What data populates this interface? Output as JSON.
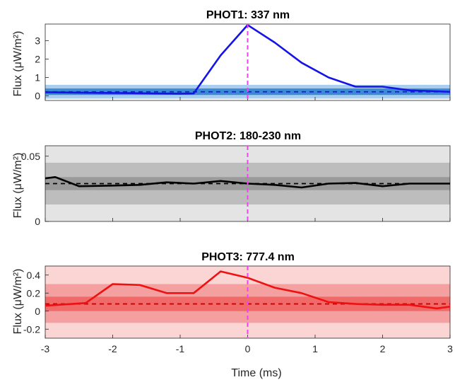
{
  "chart_data": [
    {
      "type": "line",
      "title": "PHOT1: 337 nm",
      "ylabel": "Flux (μW/m²)",
      "xlabel": "",
      "xlim": [
        -3,
        3
      ],
      "ylim": [
        -0.25,
        3.9
      ],
      "yticks": [
        0,
        1,
        2,
        3
      ],
      "xticks": [
        -3,
        -2,
        -1,
        0,
        1,
        2,
        3
      ],
      "show_xticklabels": false,
      "colors": {
        "line": "#1414e6",
        "mean": "#1a1acc",
        "band_inner": "#3a8ad6",
        "band_outer": "#a8cdee",
        "event": "#ee44ee"
      },
      "mean": 0.22,
      "band_inner": [
        0.05,
        0.4
      ],
      "band_outer": [
        -0.15,
        0.6
      ],
      "event_x": 0,
      "x": [
        -3.0,
        -2.6,
        -2.2,
        -1.8,
        -1.4,
        -1.0,
        -0.8,
        -0.4,
        0.0,
        0.4,
        0.8,
        1.2,
        1.6,
        2.0,
        2.4,
        2.8,
        3.0
      ],
      "values": [
        0.2,
        0.18,
        0.16,
        0.15,
        0.13,
        0.12,
        0.13,
        2.2,
        3.85,
        2.9,
        1.8,
        1.0,
        0.5,
        0.5,
        0.3,
        0.25,
        0.22
      ]
    },
    {
      "type": "line",
      "title": "PHOT2: 180-230 nm",
      "ylabel": "Flux (μW/m²)",
      "xlabel": "",
      "xlim": [
        -3,
        3
      ],
      "ylim": [
        0,
        0.058
      ],
      "yticks": [
        0,
        0.05
      ],
      "ytick_labels": [
        "0",
        "0.05"
      ],
      "xticks": [
        -3,
        -2,
        -1,
        0,
        1,
        2,
        3
      ],
      "show_xticklabels": false,
      "colors": {
        "line": "#000000",
        "mean": "#000000",
        "band_inner": "#9a9a9a",
        "band_mid": "#bdbdbd",
        "band_outer": "#e4e4e4",
        "event": "#ee44ee"
      },
      "mean": 0.029,
      "band_inner": [
        0.024,
        0.034
      ],
      "band_mid": [
        0.013,
        0.045
      ],
      "band_outer": [
        0,
        0.058
      ],
      "event_x": 0,
      "x": [
        -3.0,
        -2.85,
        -2.5,
        -2.0,
        -1.6,
        -1.2,
        -0.8,
        -0.4,
        0.0,
        0.4,
        0.8,
        1.2,
        1.6,
        2.0,
        2.4,
        2.8,
        3.0
      ],
      "values": [
        0.033,
        0.034,
        0.027,
        0.0275,
        0.028,
        0.03,
        0.029,
        0.031,
        0.029,
        0.028,
        0.026,
        0.029,
        0.0295,
        0.027,
        0.029,
        0.029,
        0.029
      ]
    },
    {
      "type": "line",
      "title": "PHOT3: 777.4 nm",
      "ylabel": "Flux (μW/m²)",
      "xlabel": "Time (ms)",
      "xlim": [
        -3,
        3
      ],
      "ylim": [
        -0.3,
        0.5
      ],
      "yticks": [
        -0.2,
        0,
        0.2,
        0.4
      ],
      "ytick_labels": [
        "-0.2",
        "0",
        "0.2",
        "0.4"
      ],
      "xticks": [
        -3,
        -2,
        -1,
        0,
        1,
        2,
        3
      ],
      "xtick_labels": [
        "-3",
        "-2",
        "-1",
        "0",
        "1",
        "2",
        "3"
      ],
      "show_xticklabels": true,
      "colors": {
        "line": "#ee1111",
        "mean": "#cc0000",
        "band_inner": "#f06a6a",
        "band_mid": "#f5a0a0",
        "band_outer": "#fbd4d4",
        "event": "#ee44ee"
      },
      "mean": 0.08,
      "band_inner": [
        0.0,
        0.16
      ],
      "band_mid": [
        -0.13,
        0.3
      ],
      "band_outer": [
        -0.3,
        0.5
      ],
      "event_x": 0,
      "x": [
        -3.0,
        -2.8,
        -2.4,
        -2.0,
        -1.6,
        -1.2,
        -0.8,
        -0.4,
        0.0,
        0.4,
        0.8,
        1.2,
        1.6,
        2.0,
        2.4,
        2.8,
        3.0
      ],
      "values": [
        0.06,
        0.07,
        0.09,
        0.3,
        0.29,
        0.2,
        0.2,
        0.44,
        0.37,
        0.26,
        0.2,
        0.1,
        0.08,
        0.07,
        0.07,
        0.03,
        0.05
      ]
    }
  ]
}
